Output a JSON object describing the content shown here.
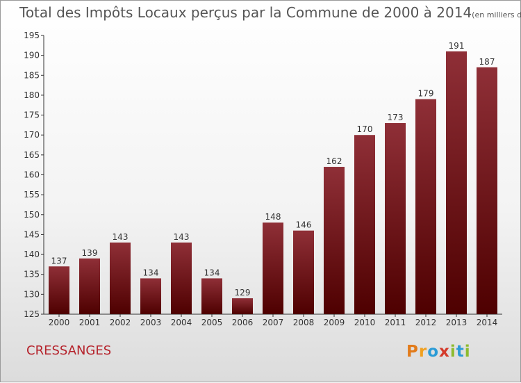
{
  "header": {
    "title": "Total des Impôts Locaux perçus par la Commune de 2000 à 2014",
    "unit": "(en milliers d'€)"
  },
  "footer": {
    "commune": "CRESSANGES",
    "logo": "Proxiti"
  },
  "chart_data": {
    "type": "bar",
    "categories": [
      "2000",
      "2001",
      "2002",
      "2003",
      "2004",
      "2005",
      "2006",
      "2007",
      "2008",
      "2009",
      "2010",
      "2011",
      "2012",
      "2013",
      "2014"
    ],
    "values": [
      137,
      139,
      143,
      134,
      143,
      134,
      129,
      148,
      146,
      162,
      170,
      173,
      179,
      191,
      187
    ],
    "ylim": [
      125,
      195
    ],
    "yticks": [
      125,
      130,
      135,
      140,
      145,
      150,
      155,
      160,
      165,
      170,
      175,
      180,
      185,
      190,
      195
    ],
    "grid": false,
    "bar_color_top": "#8f2f37",
    "bar_color_bottom": "#4e0000",
    "title_color": "#555555",
    "commune_color": "#b5222b"
  }
}
